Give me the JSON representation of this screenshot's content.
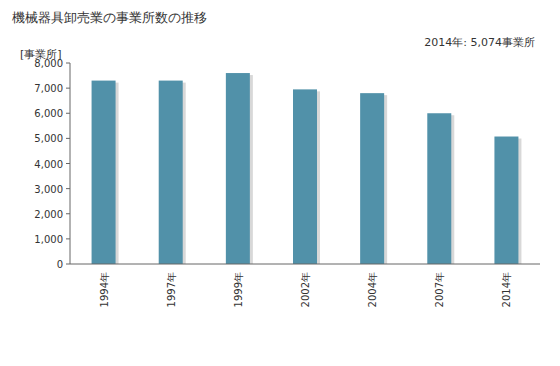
{
  "chart_data": {
    "type": "bar",
    "title": "機械器具卸売業の事業所数の推移",
    "y_label": "[事業所]",
    "annotation": "2014年: 5,074事業所",
    "categories": [
      "1994年",
      "1997年",
      "1999年",
      "2002年",
      "2004年",
      "2007年",
      "2014年"
    ],
    "values": [
      7300,
      7300,
      7600,
      6950,
      6800,
      6000,
      5074
    ],
    "color": "#5191a9",
    "ylim": [
      0,
      8000
    ],
    "yticks": [
      0,
      {
        "value": 1000,
        "label": "1,000"
      },
      {
        "value": 2000,
        "label": "2,000"
      },
      {
        "value": 3000,
        "label": "3,000"
      },
      {
        "value": 4000,
        "label": "4,000"
      },
      {
        "value": 5000,
        "label": "5,000"
      },
      {
        "value": 6000,
        "label": "6,000"
      },
      {
        "value": 7000,
        "label": "7,000"
      },
      {
        "value": 8000,
        "label": "8,000"
      }
    ],
    "grid": false
  }
}
